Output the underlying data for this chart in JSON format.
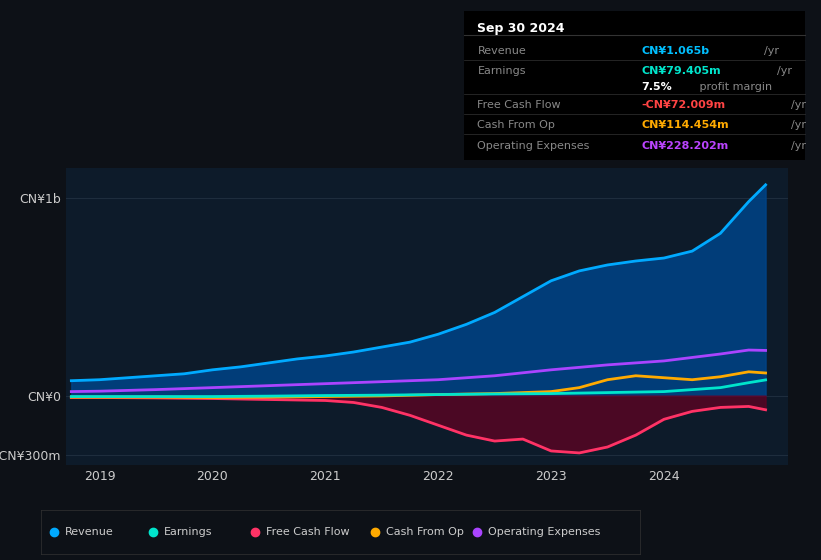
{
  "bg_color": "#0d1117",
  "chart_bg": "#0d1b2a",
  "title_box": {
    "date": "Sep 30 2024",
    "rows": [
      {
        "label": "Revenue",
        "value": "CN¥1.065b",
        "unit": "/yr",
        "value_color": "#00bfff"
      },
      {
        "label": "Earnings",
        "value": "CN¥79.405m",
        "unit": "/yr",
        "value_color": "#00e5cc"
      },
      {
        "label": "",
        "value": "7.5%",
        "unit": " profit margin",
        "value_color": "#ffffff"
      },
      {
        "label": "Free Cash Flow",
        "value": "-CN¥72.009m",
        "unit": "/yr",
        "value_color": "#ff4444"
      },
      {
        "label": "Cash From Op",
        "value": "CN¥114.454m",
        "unit": "/yr",
        "value_color": "#ffaa00"
      },
      {
        "label": "Operating Expenses",
        "value": "CN¥228.202m",
        "unit": "/yr",
        "value_color": "#bb44ff"
      }
    ]
  },
  "ylim": [
    -350000000,
    1150000000
  ],
  "yticks": [
    -300000000,
    0,
    1000000000
  ],
  "ytick_labels": [
    "-CN¥300m",
    "CN¥0",
    "CN¥1b"
  ],
  "xticks": [
    2019,
    2020,
    2021,
    2022,
    2023,
    2024
  ],
  "series": {
    "Revenue": {
      "color": "#00aaff",
      "fill_color": "#004488",
      "x": [
        2018.75,
        2019.0,
        2019.25,
        2019.5,
        2019.75,
        2020.0,
        2020.25,
        2020.5,
        2020.75,
        2021.0,
        2021.25,
        2021.5,
        2021.75,
        2022.0,
        2022.25,
        2022.5,
        2022.75,
        2023.0,
        2023.25,
        2023.5,
        2023.75,
        2024.0,
        2024.25,
        2024.5,
        2024.75,
        2024.9
      ],
      "y": [
        75000000,
        80000000,
        90000000,
        100000000,
        110000000,
        130000000,
        145000000,
        165000000,
        185000000,
        200000000,
        220000000,
        245000000,
        270000000,
        310000000,
        360000000,
        420000000,
        500000000,
        580000000,
        630000000,
        660000000,
        680000000,
        695000000,
        730000000,
        820000000,
        980000000,
        1065000000
      ]
    },
    "Earnings": {
      "color": "#00e5cc",
      "x": [
        2018.75,
        2019.0,
        2019.5,
        2020.0,
        2020.5,
        2021.0,
        2021.5,
        2022.0,
        2022.5,
        2023.0,
        2023.5,
        2024.0,
        2024.5,
        2024.75,
        2024.9
      ],
      "y": [
        -5000000,
        -5000000,
        -5000000,
        -5000000,
        -3000000,
        0,
        2000000,
        5000000,
        8000000,
        10000000,
        15000000,
        20000000,
        40000000,
        65000000,
        79000000
      ]
    },
    "FreeCashFlow": {
      "color": "#ff3366",
      "fill_color": "#660022",
      "x": [
        2018.75,
        2019.0,
        2019.5,
        2020.0,
        2020.5,
        2021.0,
        2021.25,
        2021.5,
        2021.75,
        2022.0,
        2022.25,
        2022.5,
        2022.75,
        2023.0,
        2023.25,
        2023.5,
        2023.75,
        2024.0,
        2024.25,
        2024.5,
        2024.75,
        2024.9
      ],
      "y": [
        -10000000,
        -10000000,
        -12000000,
        -15000000,
        -20000000,
        -25000000,
        -35000000,
        -60000000,
        -100000000,
        -150000000,
        -200000000,
        -230000000,
        -220000000,
        -280000000,
        -290000000,
        -260000000,
        -200000000,
        -120000000,
        -80000000,
        -60000000,
        -55000000,
        -72000000
      ]
    },
    "CashFromOp": {
      "color": "#ffaa00",
      "x": [
        2018.75,
        2019.0,
        2019.5,
        2020.0,
        2020.5,
        2021.0,
        2021.5,
        2022.0,
        2022.5,
        2023.0,
        2023.25,
        2023.5,
        2023.75,
        2024.0,
        2024.25,
        2024.5,
        2024.75,
        2024.9
      ],
      "y": [
        -8000000,
        -8000000,
        -8000000,
        -10000000,
        -8000000,
        -5000000,
        -2000000,
        5000000,
        10000000,
        20000000,
        40000000,
        80000000,
        100000000,
        90000000,
        80000000,
        95000000,
        120000000,
        114000000
      ]
    },
    "OperatingExpenses": {
      "color": "#aa44ff",
      "x": [
        2018.75,
        2019.0,
        2019.5,
        2020.0,
        2020.5,
        2021.0,
        2021.5,
        2022.0,
        2022.5,
        2023.0,
        2023.5,
        2024.0,
        2024.5,
        2024.75,
        2024.9
      ],
      "y": [
        20000000,
        22000000,
        30000000,
        40000000,
        50000000,
        60000000,
        70000000,
        80000000,
        100000000,
        130000000,
        155000000,
        175000000,
        210000000,
        230000000,
        228000000
      ]
    }
  },
  "legend": [
    {
      "label": "Revenue",
      "color": "#00aaff"
    },
    {
      "label": "Earnings",
      "color": "#00e5cc"
    },
    {
      "label": "Free Cash Flow",
      "color": "#ff3366"
    },
    {
      "label": "Cash From Op",
      "color": "#ffaa00"
    },
    {
      "label": "Operating Expenses",
      "color": "#aa44ff"
    }
  ],
  "gridline_color": "#1e2d3d",
  "text_color": "#aaaaaa",
  "axis_label_color": "#cccccc"
}
